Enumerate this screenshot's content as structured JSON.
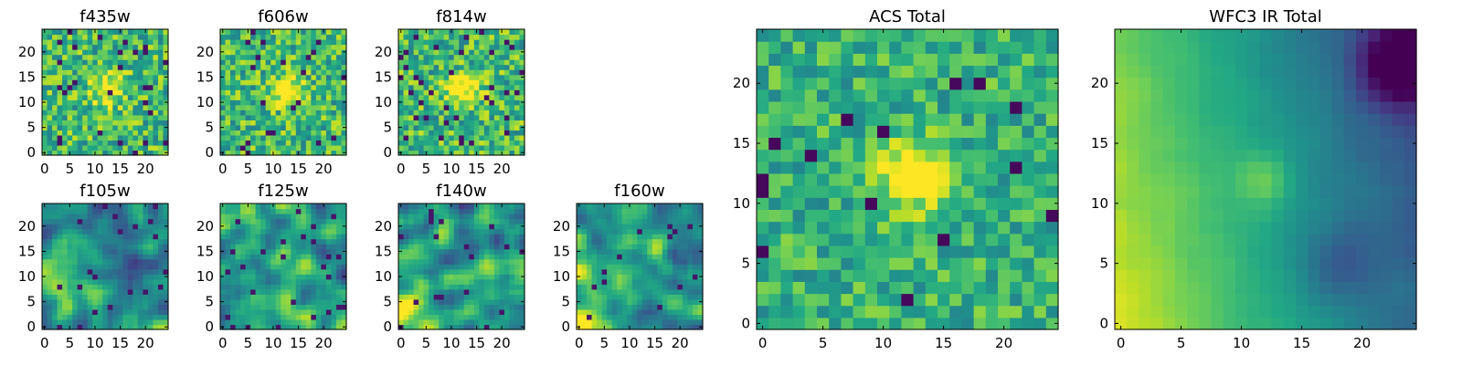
{
  "chart_data": {
    "type": "heatmap",
    "colormap": "viridis",
    "panels": [
      {
        "id": "f435w",
        "title": "f435w",
        "xlim": [
          -0.5,
          24.5
        ],
        "ylim": [
          -0.5,
          24.5
        ],
        "xticks": [
          0,
          5,
          10,
          15,
          20
        ],
        "yticks": [
          0,
          5,
          10,
          15,
          20
        ],
        "xtick_labels": [
          "0",
          "5",
          "10",
          "15",
          "20"
        ],
        "ytick_labels": [
          "0",
          "5",
          "10",
          "15",
          "20"
        ],
        "grid": [
          25,
          25
        ],
        "bright_spot": [
          12.5,
          12.5
        ],
        "character": "noisy, mostly bright"
      },
      {
        "id": "f606w",
        "title": "f606w",
        "xlim": [
          -0.5,
          24.5
        ],
        "ylim": [
          -0.5,
          24.5
        ],
        "xticks": [
          0,
          5,
          10,
          15,
          20
        ],
        "yticks": [
          0,
          5,
          10,
          15,
          20
        ],
        "xtick_labels": [
          "0",
          "5",
          "10",
          "15",
          "20"
        ],
        "ytick_labels": [
          "0",
          "5",
          "10",
          "15",
          "20"
        ],
        "grid": [
          25,
          25
        ],
        "bright_spot": [
          12.5,
          12.5
        ],
        "character": "noisy"
      },
      {
        "id": "f814w",
        "title": "f814w",
        "xlim": [
          -0.5,
          24.5
        ],
        "ylim": [
          -0.5,
          24.5
        ],
        "xticks": [
          0,
          5,
          10,
          15,
          20
        ],
        "yticks": [
          0,
          5,
          10,
          15,
          20
        ],
        "xtick_labels": [
          "0",
          "5",
          "10",
          "15",
          "20"
        ],
        "ytick_labels": [
          "0",
          "5",
          "10",
          "15",
          "20"
        ],
        "grid": [
          25,
          25
        ],
        "bright_spot": [
          12.5,
          12.5
        ],
        "character": "noisy"
      },
      {
        "id": "f105w",
        "title": "f105w",
        "xlim": [
          -0.5,
          24.5
        ],
        "ylim": [
          -0.5,
          24.5
        ],
        "xticks": [
          0,
          5,
          10,
          15,
          20
        ],
        "yticks": [
          0,
          5,
          10,
          15,
          20
        ],
        "xtick_labels": [
          "0",
          "5",
          "10",
          "15",
          "20"
        ],
        "ytick_labels": [
          "0",
          "5",
          "10",
          "15",
          "20"
        ],
        "grid": [
          25,
          25
        ],
        "bright_spot": [
          3,
          8
        ],
        "character": "smooth blotchy"
      },
      {
        "id": "f125w",
        "title": "f125w",
        "xlim": [
          -0.5,
          24.5
        ],
        "ylim": [
          -0.5,
          24.5
        ],
        "xticks": [
          0,
          5,
          10,
          15,
          20
        ],
        "yticks": [
          0,
          5,
          10,
          15,
          20
        ],
        "xtick_labels": [
          "0",
          "5",
          "10",
          "15",
          "20"
        ],
        "ytick_labels": [
          "0",
          "5",
          "10",
          "15",
          "20"
        ],
        "grid": [
          25,
          25
        ],
        "bright_spot": [
          12,
          12
        ],
        "character": "smooth blotchy"
      },
      {
        "id": "f140w",
        "title": "f140w",
        "xlim": [
          -0.5,
          24.5
        ],
        "ylim": [
          -0.5,
          24.5
        ],
        "xticks": [
          0,
          5,
          10,
          15,
          20
        ],
        "yticks": [
          0,
          5,
          10,
          15,
          20
        ],
        "xtick_labels": [
          "0",
          "5",
          "10",
          "15",
          "20"
        ],
        "ytick_labels": [
          "0",
          "5",
          "10",
          "15",
          "20"
        ],
        "grid": [
          25,
          25
        ],
        "bright_spot": [
          0,
          3
        ],
        "character": "smooth blotchy"
      },
      {
        "id": "f160w",
        "title": "f160w",
        "xlim": [
          -0.5,
          24.5
        ],
        "ylim": [
          -0.5,
          24.5
        ],
        "xticks": [
          0,
          5,
          10,
          15,
          20
        ],
        "yticks": [
          0,
          5,
          10,
          15,
          20
        ],
        "xtick_labels": [
          "0",
          "5",
          "10",
          "15",
          "20"
        ],
        "ytick_labels": [
          "0",
          "5",
          "10",
          "15",
          "20"
        ],
        "grid": [
          25,
          25
        ],
        "bright_spot": [
          1,
          3
        ],
        "character": "smooth, bright lower-left"
      },
      {
        "id": "acs_total",
        "title": "ACS Total",
        "xlim": [
          -0.5,
          24.5
        ],
        "ylim": [
          -0.5,
          24.5
        ],
        "xticks": [
          0,
          5,
          10,
          15,
          20
        ],
        "yticks": [
          0,
          5,
          10,
          15,
          20
        ],
        "xtick_labels": [
          "0",
          "5",
          "10",
          "15",
          "20"
        ],
        "ytick_labels": [
          "0",
          "5",
          "10",
          "15",
          "20"
        ],
        "grid": [
          25,
          25
        ],
        "bright_spot": [
          12.5,
          12.5
        ],
        "character": "noisy, bright center"
      },
      {
        "id": "wfc3_ir_total",
        "title": "WFC3 IR Total",
        "xlim": [
          -0.5,
          24.5
        ],
        "ylim": [
          -0.5,
          24.5
        ],
        "xticks": [
          0,
          5,
          10,
          15,
          20
        ],
        "yticks": [
          0,
          5,
          10,
          15,
          20
        ],
        "xtick_labels": [
          "0",
          "5",
          "10",
          "15",
          "20"
        ],
        "ytick_labels": [
          "0",
          "5",
          "10",
          "15",
          "20"
        ],
        "grid": [
          25,
          25
        ],
        "bright_spot": [
          12,
          12
        ],
        "character": "smooth gradient, bright left, dark upper-right"
      }
    ]
  }
}
